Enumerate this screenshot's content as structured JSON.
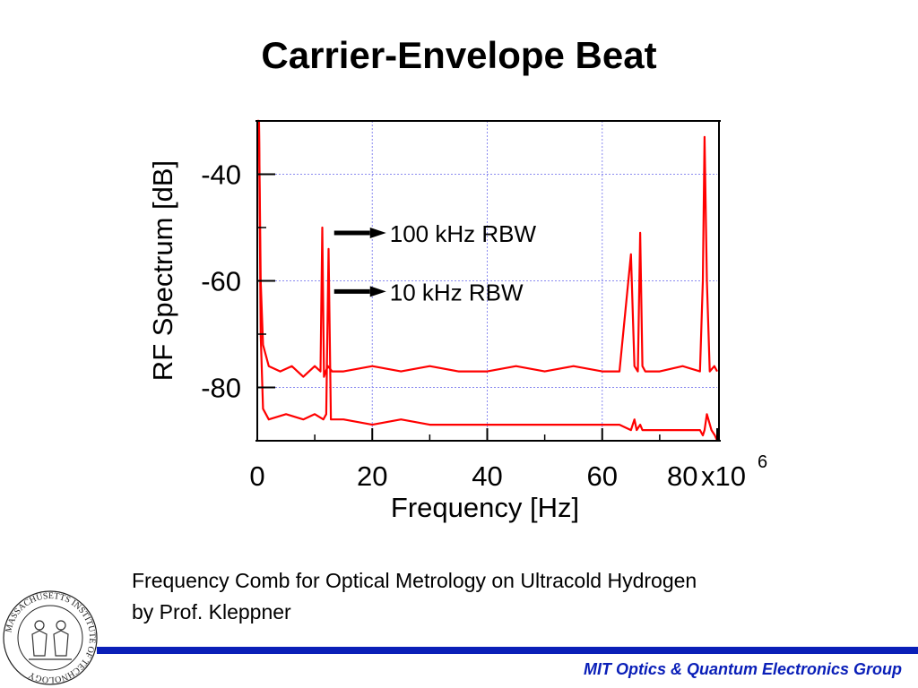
{
  "slide": {
    "title": "Carrier-Envelope Beat",
    "caption_line1": "Frequency Comb for Optical Metrology on Ultracold Hydrogen",
    "caption_line2": "by Prof. Kleppner",
    "footer": "MIT Optics & Quantum Electronics Group",
    "logo_text": "MASSACHUSETTS INSTITUTE OF TECHNOLOGY",
    "footer_color": "#0a1fb8"
  },
  "chart_data": {
    "type": "line",
    "xlabel": "Frequency [Hz]",
    "ylabel": "RF Spectrum  [dB]",
    "x_multiplier_label": "x10",
    "x_multiplier_exponent": "6",
    "xlim": [
      0,
      80
    ],
    "ylim": [
      -90,
      -30
    ],
    "x_ticks": [
      0,
      20,
      40,
      60,
      80
    ],
    "x_tick_labels": [
      "0",
      "20",
      "40",
      "60",
      "80"
    ],
    "y_ticks": [
      -40,
      -60,
      -80
    ],
    "y_tick_labels": [
      "-40",
      "-60",
      "-80"
    ],
    "grid": true,
    "series_color": "#ff0000",
    "annotations": [
      {
        "text": "100 kHz RBW",
        "arrow_to": [
          11.5,
          -51
        ]
      },
      {
        "text": "10 kHz RBW",
        "arrow_to": [
          11.5,
          -62
        ]
      }
    ],
    "series": [
      {
        "x": [
          0,
          0.3,
          0.6,
          1.0,
          2,
          4,
          6,
          8,
          10,
          11,
          11.3,
          11.6,
          11.9,
          12.3,
          13,
          15,
          20,
          25,
          30,
          35,
          40,
          45,
          50,
          55,
          60,
          63,
          65,
          65.6,
          66.2,
          66.6,
          67,
          67.5,
          70,
          74,
          77,
          77.5,
          77.8,
          78.2,
          78.7,
          79.5,
          80
        ],
        "y": [
          -30,
          -30,
          -60,
          -72,
          -76,
          -77,
          -76,
          -78,
          -76,
          -77,
          -50,
          -78,
          -77,
          -76,
          -77,
          -77,
          -76,
          -77,
          -76,
          -77,
          -77,
          -76,
          -77,
          -76,
          -77,
          -77,
          -55,
          -76,
          -77,
          -51,
          -76,
          -77,
          -77,
          -76,
          -77,
          -60,
          -33,
          -60,
          -77,
          -76,
          -77
        ]
      },
      {
        "x": [
          0,
          0.3,
          0.6,
          1.0,
          2,
          5,
          8,
          10,
          11.5,
          12,
          12.4,
          12.8,
          13.2,
          15,
          20,
          25,
          30,
          35,
          40,
          45,
          50,
          55,
          60,
          63,
          65,
          65.6,
          66,
          66.6,
          67,
          70,
          74,
          77,
          77.5,
          77.8,
          78.2,
          79,
          79.6,
          80
        ],
        "y": [
          -30,
          -30,
          -70,
          -84,
          -86,
          -85,
          -86,
          -85,
          -86,
          -85,
          -54,
          -86,
          -86,
          -86,
          -87,
          -86,
          -87,
          -87,
          -87,
          -87,
          -87,
          -87,
          -87,
          -87,
          -88,
          -86,
          -88,
          -87,
          -88,
          -88,
          -88,
          -88,
          -89,
          -88,
          -85,
          -88,
          -89,
          -90
        ]
      }
    ]
  }
}
